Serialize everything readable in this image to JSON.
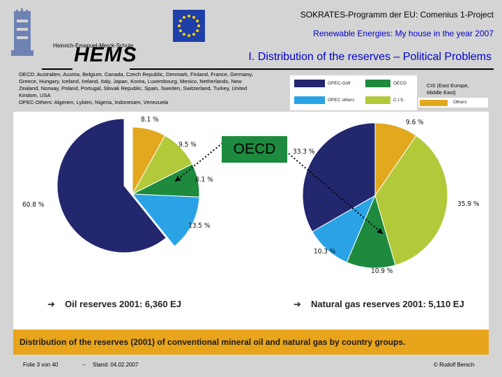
{
  "header": {
    "project": "SOKRATES-Programm der EU: Comenius 1-Project",
    "subtitle": "Renewable Energies: My house in the year 2007",
    "school": "Heinrich-Emanuel-Merck-Schule",
    "logo_text": "HEMS"
  },
  "title": "I. Distribution of the reserves – Political Problems",
  "definitions": {
    "oecd": "OECD: Australien, Austria, Belgium, Canada, Czech Republic, Denmark, Finland, France, Germany, Greece, Hungary, Iceland, Ireland, Italy, Japan, Korea, Luxembourg, Mexico, Netherlands, New Zealand, Norway, Poland, Portugal, Slovak Republic, Spain, Sweden, Switzerland, Turkey, United Kindom, USA",
    "opec_others": "OPEC-Others: Algerien, Lybien, Nigeria, Indonesien, Venezuela"
  },
  "cis_note": "CIS (East Europe,\nMiddle East)",
  "legend": [
    {
      "label": "OPEC-Golf",
      "color": "#22276e"
    },
    {
      "label": "OECD",
      "color": "#1d8a3e"
    },
    {
      "label": "OPEC others",
      "color": "#2aa3e6"
    },
    {
      "label": "C.I.S.",
      "color": "#b2c93a"
    },
    {
      "label": "Others",
      "color": "#e2a81e"
    }
  ],
  "callout": "OECD",
  "colors": {
    "navy": "#22276e",
    "green": "#1d8a3e",
    "cyan": "#2aa3e6",
    "lime": "#b2c93a",
    "orange": "#e2a81e",
    "banner": "#e8a41a"
  },
  "chart_data": [
    {
      "type": "pie",
      "caption": "Oil reserves 2001: 6,360 EJ",
      "series_order": [
        "Others",
        "C.I.S.",
        "OECD",
        "OPEC others",
        "OPEC-Golf"
      ],
      "labels": [
        "8.1 %",
        "9.5 %",
        "8.1 %",
        "13.5 %",
        "60.8 %"
      ],
      "values": [
        8.1,
        9.5,
        8.1,
        13.5,
        60.8
      ]
    },
    {
      "type": "pie",
      "caption": "Natural gas reserves 2001: 5,110 EJ",
      "series_order": [
        "Others",
        "C.I.S.",
        "OECD",
        "OPEC others",
        "OPEC-Golf"
      ],
      "labels": [
        "9.6 %",
        "35.9 %",
        "10.9 %",
        "10.3 %",
        "33.3 %"
      ],
      "values": [
        9.6,
        35.9,
        10.9,
        10.3,
        33.3
      ]
    }
  ],
  "banner": "Distribution of the reserves (2001) of conventional mineral oil and natural gas by country groups.",
  "footer": {
    "slide": "Folie 3 von 40",
    "dash": "–",
    "date": "Stand: 04.02.2007",
    "author": "© Rudolf Bersch"
  }
}
